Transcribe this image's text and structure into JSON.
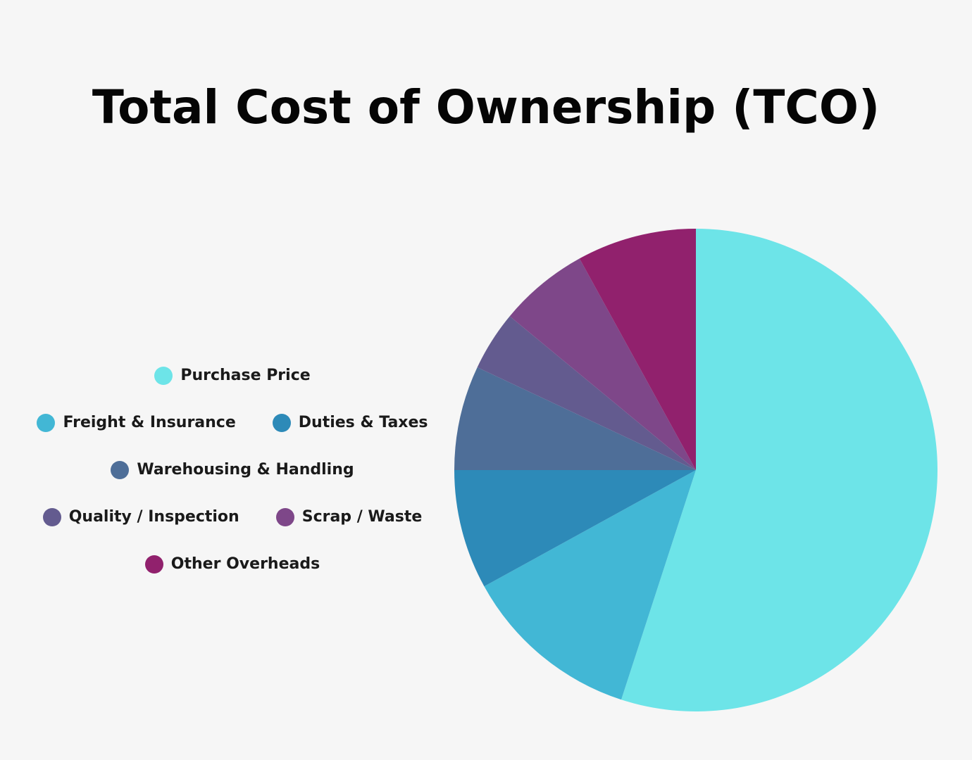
{
  "chart_data": {
    "type": "pie",
    "title": "Total Cost of Ownership (TCO)",
    "legend_placement": "left",
    "slices": [
      {
        "label": "Purchase Price",
        "value": 55.0,
        "color": "#6de4e8"
      },
      {
        "label": "Freight & Insurance",
        "value": 12.0,
        "color": "#42b7d5"
      },
      {
        "label": "Duties & Taxes",
        "value": 8.0,
        "color": "#2d8ab8"
      },
      {
        "label": "Warehousing & Handling",
        "value": 7.0,
        "color": "#4e6e98"
      },
      {
        "label": "Quality / Inspection",
        "value": 4.0,
        "color": "#635b8f"
      },
      {
        "label": "Scrap / Waste",
        "value": 6.0,
        "color": "#7e4789"
      },
      {
        "label": "Other Overheads",
        "value": 8.0,
        "color": "#91216d"
      }
    ]
  },
  "legend_rows": [
    [
      0
    ],
    [
      1,
      2
    ],
    [
      3
    ],
    [
      4,
      5
    ],
    [
      6
    ]
  ]
}
